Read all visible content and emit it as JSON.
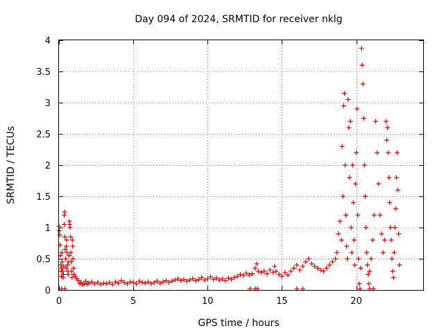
{
  "chart_data": {
    "type": "scatter",
    "title": "Day 094 of 2024, SRMTID for receiver nklg",
    "xlabel": "GPS time / hours",
    "ylabel": "SRMTID / TECUs",
    "xlim": [
      0,
      24.5
    ],
    "ylim": [
      0,
      4
    ],
    "xticks": [
      0,
      5,
      10,
      15,
      20
    ],
    "xtick_labels": [
      "0",
      "5",
      "10",
      "15",
      "20"
    ],
    "yticks": [
      0,
      0.5,
      1,
      1.5,
      2,
      2.5,
      3,
      3.5,
      4
    ],
    "ytick_labels": [
      "0",
      "0.5",
      "1",
      "1.5",
      "2",
      "2.5",
      "3",
      "3.5",
      "4"
    ],
    "grid": true,
    "marker": "+",
    "color": "#dd0000",
    "series": [
      {
        "name": "SRMTID",
        "points": [
          [
            0.0,
            1.02
          ],
          [
            0.02,
            0.95
          ],
          [
            0.05,
            0.88
          ],
          [
            0.08,
            0.72
          ],
          [
            0.1,
            0.55
          ],
          [
            0.12,
            0.4
          ],
          [
            0.14,
            0.3
          ],
          [
            0.16,
            0.22
          ],
          [
            0.18,
            0.35
          ],
          [
            0.2,
            0.6
          ],
          [
            0.22,
            0.45
          ],
          [
            0.25,
            0.3
          ],
          [
            0.28,
            0.2
          ],
          [
            0.3,
            0.25
          ],
          [
            0.32,
            0.38
          ],
          [
            0.35,
            1.05
          ],
          [
            0.36,
            1.2
          ],
          [
            0.38,
            1.25
          ],
          [
            0.4,
            0.85
          ],
          [
            0.42,
            0.65
          ],
          [
            0.45,
            0.5
          ],
          [
            0.48,
            0.35
          ],
          [
            0.5,
            0.7
          ],
          [
            0.52,
            0.8
          ],
          [
            0.55,
            0.6
          ],
          [
            0.58,
            0.4
          ],
          [
            0.6,
            0.3
          ],
          [
            0.62,
            0.25
          ],
          [
            0.65,
            0.45
          ],
          [
            0.68,
            0.55
          ],
          [
            0.7,
            1.1
          ],
          [
            0.72,
            1.05
          ],
          [
            0.75,
            1.0
          ],
          [
            0.78,
            0.85
          ],
          [
            0.8,
            0.6
          ],
          [
            0.82,
            0.45
          ],
          [
            0.85,
            0.3
          ],
          [
            0.88,
            0.2
          ],
          [
            0.9,
            0.8
          ],
          [
            0.92,
            0.7
          ],
          [
            0.95,
            0.5
          ],
          [
            0.98,
            0.35
          ],
          [
            1.0,
            0.25
          ],
          [
            0.18,
            0.02
          ],
          [
            0.4,
            0.02
          ],
          [
            1.1,
            0.22
          ],
          [
            1.2,
            0.18
          ],
          [
            1.3,
            0.15
          ],
          [
            1.4,
            0.1
          ],
          [
            1.5,
            0.12
          ],
          [
            1.6,
            0.08
          ],
          [
            1.7,
            0.1
          ],
          [
            1.8,
            0.14
          ],
          [
            1.9,
            0.09
          ],
          [
            2.0,
            0.11
          ],
          [
            2.2,
            0.13
          ],
          [
            2.4,
            0.1
          ],
          [
            2.6,
            0.12
          ],
          [
            2.8,
            0.09
          ],
          [
            3.0,
            0.11
          ],
          [
            3.2,
            0.1
          ],
          [
            3.4,
            0.12
          ],
          [
            3.6,
            0.09
          ],
          [
            3.8,
            0.13
          ],
          [
            4.0,
            0.11
          ],
          [
            4.2,
            0.15
          ],
          [
            4.4,
            0.12
          ],
          [
            4.6,
            0.1
          ],
          [
            4.8,
            0.13
          ],
          [
            5.0,
            0.12
          ],
          [
            5.2,
            0.1
          ],
          [
            5.4,
            0.14
          ],
          [
            5.6,
            0.12
          ],
          [
            5.8,
            0.11
          ],
          [
            6.0,
            0.13
          ],
          [
            6.2,
            0.1
          ],
          [
            6.4,
            0.12
          ],
          [
            6.6,
            0.14
          ],
          [
            6.8,
            0.11
          ],
          [
            7.0,
            0.13
          ],
          [
            7.2,
            0.15
          ],
          [
            7.4,
            0.12
          ],
          [
            7.6,
            0.14
          ],
          [
            7.8,
            0.16
          ],
          [
            8.0,
            0.18
          ],
          [
            8.2,
            0.15
          ],
          [
            8.4,
            0.17
          ],
          [
            8.6,
            0.14
          ],
          [
            8.8,
            0.16
          ],
          [
            9.0,
            0.18
          ],
          [
            9.2,
            0.15
          ],
          [
            9.4,
            0.17
          ],
          [
            9.6,
            0.2
          ],
          [
            9.8,
            0.16
          ],
          [
            10.0,
            0.18
          ],
          [
            10.2,
            0.21
          ],
          [
            10.4,
            0.17
          ],
          [
            10.6,
            0.19
          ],
          [
            10.8,
            0.16
          ],
          [
            11.0,
            0.18
          ],
          [
            11.2,
            0.15
          ],
          [
            11.4,
            0.19
          ],
          [
            11.6,
            0.17
          ],
          [
            11.8,
            0.2
          ],
          [
            12.0,
            0.22
          ],
          [
            12.2,
            0.25
          ],
          [
            12.4,
            0.23
          ],
          [
            12.6,
            0.27
          ],
          [
            12.8,
            0.24
          ],
          [
            13.0,
            0.26
          ],
          [
            13.2,
            0.35
          ],
          [
            13.3,
            0.42
          ],
          [
            13.4,
            0.3
          ],
          [
            13.6,
            0.28
          ],
          [
            13.8,
            0.3
          ],
          [
            14.0,
            0.26
          ],
          [
            14.2,
            0.32
          ],
          [
            14.4,
            0.28
          ],
          [
            14.5,
            0.38
          ],
          [
            14.6,
            0.3
          ],
          [
            14.8,
            0.25
          ],
          [
            15.0,
            0.22
          ],
          [
            15.2,
            0.28
          ],
          [
            15.4,
            0.24
          ],
          [
            15.6,
            0.3
          ],
          [
            15.8,
            0.35
          ],
          [
            16.0,
            0.4
          ],
          [
            16.2,
            0.32
          ],
          [
            16.4,
            0.38
          ],
          [
            16.6,
            0.45
          ],
          [
            16.8,
            0.5
          ],
          [
            17.0,
            0.42
          ],
          [
            17.2,
            0.38
          ],
          [
            17.4,
            0.35
          ],
          [
            17.6,
            0.32
          ],
          [
            17.8,
            0.3
          ],
          [
            18.0,
            0.35
          ],
          [
            18.2,
            0.4
          ],
          [
            18.4,
            0.45
          ],
          [
            18.6,
            0.5
          ],
          [
            12.85,
            0.02
          ],
          [
            13.2,
            0.02
          ],
          [
            13.35,
            0.02
          ],
          [
            16.0,
            0.02
          ],
          [
            16.4,
            0.02
          ],
          [
            18.7,
            0.6
          ],
          [
            18.8,
            0.9
          ],
          [
            18.9,
            1.1
          ],
          [
            19.0,
            0.8
          ],
          [
            19.05,
            2.3
          ],
          [
            19.1,
            1.5
          ],
          [
            19.15,
            2.95
          ],
          [
            19.2,
            3.15
          ],
          [
            19.25,
            2.0
          ],
          [
            19.3,
            1.2
          ],
          [
            19.35,
            0.7
          ],
          [
            19.4,
            0.5
          ],
          [
            19.45,
            3.05
          ],
          [
            19.5,
            2.6
          ],
          [
            19.55,
            1.8
          ],
          [
            19.6,
            2.7
          ],
          [
            19.65,
            1.0
          ],
          [
            19.7,
            0.6
          ],
          [
            19.75,
            2.0
          ],
          [
            19.8,
            1.4
          ],
          [
            19.85,
            0.8
          ],
          [
            19.9,
            0.4
          ],
          [
            19.95,
            1.7
          ],
          [
            20.0,
            2.2
          ],
          [
            20.05,
            2.9
          ],
          [
            20.1,
            1.2
          ],
          [
            20.15,
            0.5
          ],
          [
            20.2,
            0.1
          ],
          [
            20.25,
            0.02
          ],
          [
            20.3,
            0.35
          ],
          [
            20.35,
            3.87
          ],
          [
            20.4,
            3.6
          ],
          [
            20.45,
            3.3
          ],
          [
            20.5,
            2.75
          ],
          [
            20.55,
            2.0
          ],
          [
            20.6,
            1.5
          ],
          [
            20.65,
            1.0
          ],
          [
            20.7,
            0.6
          ],
          [
            20.75,
            0.4
          ],
          [
            20.8,
            0.25
          ],
          [
            20.85,
            0.1
          ],
          [
            20.9,
            0.3
          ],
          [
            21.0,
            0.5
          ],
          [
            21.1,
            0.8
          ],
          [
            21.2,
            1.2
          ],
          [
            21.3,
            2.7
          ],
          [
            21.4,
            2.2
          ],
          [
            21.5,
            1.7
          ],
          [
            21.6,
            1.2
          ],
          [
            21.7,
            0.9
          ],
          [
            21.8,
            0.6
          ],
          [
            21.9,
            0.8
          ],
          [
            22.0,
            2.7
          ],
          [
            22.05,
            2.4
          ],
          [
            22.1,
            2.6
          ],
          [
            22.15,
            2.2
          ],
          [
            22.2,
            1.8
          ],
          [
            22.25,
            1.4
          ],
          [
            22.3,
            1.0
          ],
          [
            22.35,
            0.8
          ],
          [
            22.4,
            0.5
          ],
          [
            22.45,
            0.3
          ],
          [
            22.5,
            0.2
          ],
          [
            22.55,
            0.6
          ],
          [
            22.6,
            1.0
          ],
          [
            22.65,
            1.3
          ],
          [
            22.7,
            1.8
          ],
          [
            22.75,
            2.2
          ],
          [
            22.8,
            1.6
          ],
          [
            22.85,
            0.9
          ],
          [
            22.9,
            0.4
          ],
          [
            20.9,
            0.02
          ],
          [
            21.15,
            0.02
          ]
        ]
      }
    ]
  }
}
